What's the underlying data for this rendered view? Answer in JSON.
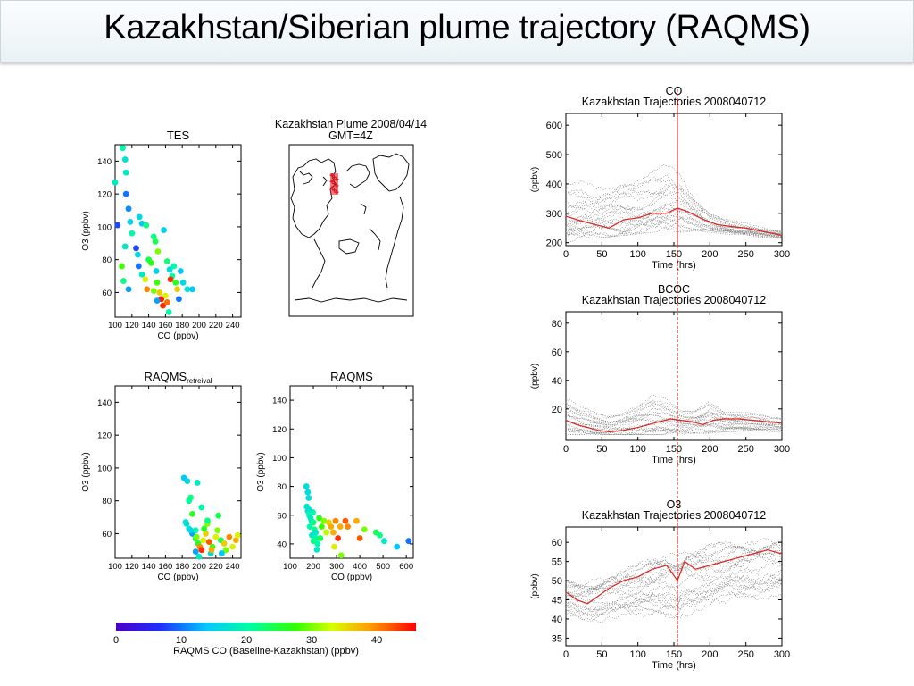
{
  "slide": {
    "title": "Kazakhstan/Siberian plume trajectory (RAQMS)"
  },
  "map": {
    "title": "Kazakhstan Plume 2008/04/14",
    "subtitle": "GMT=4Z",
    "marker_color": "#e0141e"
  },
  "colorbar": {
    "label": "RAQMS CO (Baseline-Kazakhstan) (ppbv)",
    "ticks": [
      0,
      10,
      20,
      30,
      40
    ],
    "range": [
      0,
      46
    ],
    "colormap": "rainbow"
  },
  "chart_data": [
    {
      "id": "tes",
      "type": "scatter",
      "title": "TES",
      "title_sub": "",
      "xlabel": "CO (ppbv)",
      "ylabel": "O3 (ppbv)",
      "xlim": [
        100,
        250
      ],
      "ylim": [
        45,
        150
      ],
      "xticks": [
        100,
        120,
        140,
        160,
        180,
        200,
        220,
        240
      ],
      "yticks": [
        60,
        80,
        100,
        120,
        140
      ],
      "color_var": "RAQMS CO (Baseline-Kazakhstan) (ppbv)",
      "points": [
        [
          100,
          127,
          18
        ],
        [
          103,
          101,
          8
        ],
        [
          109,
          148,
          20
        ],
        [
          112,
          141,
          17
        ],
        [
          113,
          133,
          18
        ],
        [
          113,
          120,
          10
        ],
        [
          116,
          111,
          11
        ],
        [
          118,
          103,
          15
        ],
        [
          112,
          88,
          18
        ],
        [
          108,
          76,
          28
        ],
        [
          110,
          67,
          22
        ],
        [
          116,
          62,
          12
        ],
        [
          120,
          96,
          20
        ],
        [
          125,
          87,
          8
        ],
        [
          127,
          83,
          16
        ],
        [
          129,
          106,
          16
        ],
        [
          132,
          102,
          14
        ],
        [
          128,
          76,
          10
        ],
        [
          132,
          71,
          18
        ],
        [
          136,
          68,
          34
        ],
        [
          138,
          62,
          40
        ],
        [
          140,
          80,
          24
        ],
        [
          143,
          78,
          27
        ],
        [
          146,
          94,
          22
        ],
        [
          148,
          91,
          24
        ],
        [
          149,
          73,
          15
        ],
        [
          150,
          66,
          28
        ],
        [
          146,
          61,
          30
        ],
        [
          153,
          60,
          36
        ],
        [
          155,
          56,
          45
        ],
        [
          157,
          52,
          44
        ],
        [
          160,
          58,
          34
        ],
        [
          162,
          54,
          41
        ],
        [
          164,
          48,
          20
        ],
        [
          165,
          74,
          16
        ],
        [
          168,
          70,
          20
        ],
        [
          170,
          76,
          20
        ],
        [
          172,
          66,
          26
        ],
        [
          174,
          62,
          36
        ],
        [
          176,
          56,
          10
        ],
        [
          178,
          73,
          14
        ],
        [
          181,
          66,
          16
        ],
        [
          186,
          62,
          17
        ],
        [
          192,
          62,
          14
        ],
        [
          137,
          101,
          22
        ],
        [
          151,
          85,
          30
        ],
        [
          158,
          98,
          15
        ],
        [
          162,
          79,
          23
        ],
        [
          166,
          68,
          44
        ],
        [
          150,
          55,
          12
        ]
      ]
    },
    {
      "id": "raqms_retrieval",
      "type": "scatter",
      "title": "RAQMS",
      "title_sub": "retreival",
      "xlabel": "CO (ppbv)",
      "ylabel": "O3 (ppbv)",
      "xlim": [
        100,
        250
      ],
      "ylim": [
        45,
        150
      ],
      "xticks": [
        100,
        120,
        140,
        160,
        180,
        200,
        220,
        240
      ],
      "yticks": [
        60,
        80,
        100,
        120,
        140
      ],
      "color_var": "RAQMS CO (Baseline-Kazakhstan) (ppbv)",
      "points": [
        [
          182,
          94,
          14
        ],
        [
          186,
          92,
          16
        ],
        [
          198,
          91,
          18
        ],
        [
          188,
          80,
          20
        ],
        [
          190,
          82,
          22
        ],
        [
          192,
          72,
          26
        ],
        [
          185,
          66,
          16
        ],
        [
          188,
          63,
          18
        ],
        [
          192,
          60,
          12
        ],
        [
          196,
          62,
          20
        ],
        [
          196,
          57,
          24
        ],
        [
          199,
          54,
          26
        ],
        [
          201,
          52,
          40
        ],
        [
          203,
          50,
          44
        ],
        [
          205,
          56,
          34
        ],
        [
          208,
          60,
          36
        ],
        [
          210,
          66,
          30
        ],
        [
          212,
          55,
          42
        ],
        [
          214,
          48,
          16
        ],
        [
          216,
          52,
          28
        ],
        [
          220,
          58,
          34
        ],
        [
          222,
          62,
          30
        ],
        [
          226,
          56,
          24
        ],
        [
          230,
          54,
          36
        ],
        [
          232,
          50,
          30
        ],
        [
          236,
          58,
          40
        ],
        [
          240,
          52,
          34
        ],
        [
          244,
          56,
          38
        ],
        [
          246,
          59,
          34
        ],
        [
          203,
          76,
          20
        ],
        [
          210,
          68,
          22
        ],
        [
          196,
          49,
          12
        ],
        [
          200,
          46,
          18
        ],
        [
          206,
          63,
          26
        ],
        [
          215,
          50,
          38
        ],
        [
          190,
          62,
          15
        ],
        [
          223,
          71,
          24
        ],
        [
          197,
          58,
          30
        ],
        [
          184,
          67,
          17
        ],
        [
          227,
          48,
          14
        ]
      ]
    },
    {
      "id": "raqms",
      "type": "scatter",
      "title": "RAQMS",
      "title_sub": "",
      "xlabel": "CO (ppbv)",
      "ylabel": "O3 (ppbv)",
      "xlim": [
        100,
        630
      ],
      "ylim": [
        30,
        150
      ],
      "xticks": [
        100,
        200,
        300,
        400,
        500,
        600
      ],
      "yticks": [
        40,
        60,
        80,
        100,
        120,
        140
      ],
      "color_var": "RAQMS CO (Baseline-Kazakhstan) (ppbv)",
      "points": [
        [
          170,
          80,
          16
        ],
        [
          176,
          76,
          16
        ],
        [
          180,
          72,
          17
        ],
        [
          172,
          66,
          18
        ],
        [
          176,
          63,
          18
        ],
        [
          182,
          60,
          20
        ],
        [
          188,
          58,
          18
        ],
        [
          192,
          56,
          18
        ],
        [
          198,
          62,
          20
        ],
        [
          200,
          55,
          22
        ],
        [
          205,
          50,
          22
        ],
        [
          210,
          48,
          18
        ],
        [
          214,
          44,
          20
        ],
        [
          218,
          40,
          20
        ],
        [
          200,
          42,
          22
        ],
        [
          194,
          46,
          18
        ],
        [
          185,
          52,
          20
        ],
        [
          180,
          64,
          17
        ],
        [
          225,
          58,
          26
        ],
        [
          236,
          52,
          28
        ],
        [
          246,
          56,
          30
        ],
        [
          256,
          48,
          32
        ],
        [
          266,
          55,
          36
        ],
        [
          276,
          52,
          38
        ],
        [
          286,
          48,
          38
        ],
        [
          296,
          56,
          40
        ],
        [
          306,
          44,
          44
        ],
        [
          316,
          52,
          38
        ],
        [
          338,
          56,
          42
        ],
        [
          348,
          52,
          40
        ],
        [
          386,
          56,
          38
        ],
        [
          400,
          44,
          42
        ],
        [
          420,
          50,
          30
        ],
        [
          470,
          48,
          24
        ],
        [
          486,
          46,
          22
        ],
        [
          505,
          42,
          18
        ],
        [
          560,
          38,
          14
        ],
        [
          610,
          42,
          10
        ],
        [
          320,
          32,
          30
        ],
        [
          290,
          38,
          34
        ],
        [
          215,
          36,
          18
        ],
        [
          230,
          44,
          24
        ]
      ]
    },
    {
      "id": "co_traj",
      "type": "line",
      "title": "CO",
      "subtitle": "Kazakhstan Trajectories 2008040712",
      "xlabel": "Time (hrs)",
      "ylabel": "(ppbv)",
      "xlim": [
        0,
        300
      ],
      "ylim": [
        190,
        640
      ],
      "xticks": [
        0,
        50,
        100,
        150,
        200,
        250,
        300
      ],
      "yticks": [
        200,
        300,
        400,
        500,
        600
      ],
      "vline_x": 155,
      "series": [
        {
          "x": [
            0,
            20,
            40,
            60,
            80,
            100,
            120,
            140,
            155,
            170,
            190,
            210,
            230,
            250,
            270,
            290,
            300
          ],
          "values": [
            290,
            275,
            262,
            250,
            278,
            285,
            300,
            300,
            318,
            305,
            280,
            262,
            255,
            250,
            240,
            230,
            225
          ]
        }
      ],
      "band": {
        "x": [
          0,
          20,
          40,
          60,
          80,
          100,
          120,
          140,
          160,
          180,
          200,
          220,
          240,
          260,
          280,
          300
        ],
        "low": [
          200,
          210,
          215,
          220,
          225,
          230,
          235,
          240,
          235,
          240,
          235,
          230,
          225,
          220,
          215,
          215
        ],
        "high": [
          420,
          440,
          430,
          450,
          470,
          460,
          480,
          510,
          470,
          380,
          320,
          290,
          275,
          265,
          255,
          250
        ]
      }
    },
    {
      "id": "bcoc_traj",
      "type": "line",
      "title": "BCOC",
      "subtitle": "Kazakhstan Trajectories 2008040712",
      "xlabel": "Time (hrs)",
      "ylabel": "(ppbv)",
      "xlim": [
        0,
        300
      ],
      "ylim": [
        -2,
        88
      ],
      "xticks": [
        0,
        50,
        100,
        150,
        200,
        250,
        300
      ],
      "yticks": [
        20,
        40,
        60,
        80
      ],
      "vline_x": 155,
      "series": [
        {
          "x": [
            0,
            15,
            30,
            45,
            60,
            80,
            100,
            115,
            130,
            145,
            160,
            175,
            190,
            205,
            220,
            240,
            260,
            280,
            300
          ],
          "values": [
            12,
            9,
            7,
            5,
            4,
            5,
            7,
            9,
            11,
            13,
            12,
            11,
            9,
            12,
            13,
            13,
            12,
            11,
            10
          ]
        }
      ],
      "band": {
        "x": [
          0,
          20,
          40,
          60,
          80,
          100,
          120,
          140,
          160,
          180,
          200,
          220,
          240,
          260,
          280,
          300
        ],
        "low": [
          2,
          2,
          2,
          2,
          2,
          2,
          2,
          2,
          2,
          3,
          3,
          4,
          4,
          4,
          4,
          4
        ],
        "high": [
          35,
          26,
          20,
          18,
          22,
          30,
          38,
          30,
          20,
          22,
          32,
          22,
          20,
          18,
          16,
          15
        ]
      }
    },
    {
      "id": "o3_traj",
      "type": "line",
      "title": "O3",
      "subtitle": "Kazakhstan Trajectories 2008040712",
      "xlabel": "Time (hrs)",
      "ylabel": "(ppbv)",
      "xlim": [
        0,
        300
      ],
      "ylim": [
        33,
        64
      ],
      "xticks": [
        0,
        50,
        100,
        150,
        200,
        250,
        300
      ],
      "yticks": [
        35,
        40,
        45,
        50,
        55,
        60
      ],
      "vline_x": 155,
      "series": [
        {
          "x": [
            0,
            15,
            30,
            45,
            60,
            80,
            100,
            120,
            140,
            155,
            165,
            180,
            200,
            220,
            240,
            260,
            280,
            300
          ],
          "values": [
            47,
            45,
            44,
            46,
            48,
            50,
            51,
            53,
            54,
            50,
            55,
            53,
            54,
            55,
            56,
            57,
            58,
            57
          ]
        }
      ],
      "band": {
        "x": [
          0,
          20,
          40,
          60,
          80,
          100,
          120,
          140,
          160,
          180,
          200,
          220,
          240,
          260,
          280,
          300
        ],
        "low": [
          38,
          37,
          37,
          38,
          37,
          36,
          35,
          35,
          37,
          38,
          38,
          39,
          40,
          41,
          42,
          43
        ],
        "high": [
          52,
          52,
          53,
          54,
          55,
          56,
          58,
          60,
          61,
          62,
          62,
          62,
          63,
          63,
          64,
          64
        ]
      }
    }
  ]
}
